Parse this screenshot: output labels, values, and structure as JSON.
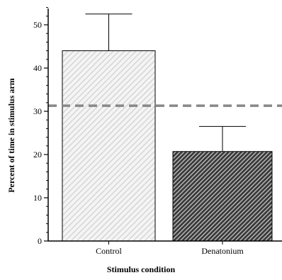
{
  "chart_data": {
    "type": "bar",
    "title": "",
    "xlabel": "Stimulus condition",
    "ylabel": "Percent of time in stimulus arm",
    "categories": [
      "Control",
      "Denatonium"
    ],
    "values": [
      44,
      20.7
    ],
    "errors": [
      8.5,
      5.8
    ],
    "ylim": [
      0,
      55
    ],
    "yticks": [
      0,
      10,
      20,
      30,
      40,
      50
    ],
    "ytick_labels": [
      "0",
      "10",
      "20",
      "30",
      "40",
      "50"
    ],
    "minor_ytick_step": 2,
    "reference_line": {
      "value": 31.3,
      "style": "dashed"
    },
    "bar_fills": [
      "light-gray diagonal hatch",
      "dark-gray diagonal hatch"
    ],
    "grid": false,
    "colors": {
      "control_fill": "#f4f4f4",
      "control_hatch": "#cfcfcf",
      "denatonium_fill": "#3a3a3a",
      "denatonium_hatch": "#bdbdbd",
      "reference_line": "#888888",
      "axis": "#000000"
    }
  }
}
